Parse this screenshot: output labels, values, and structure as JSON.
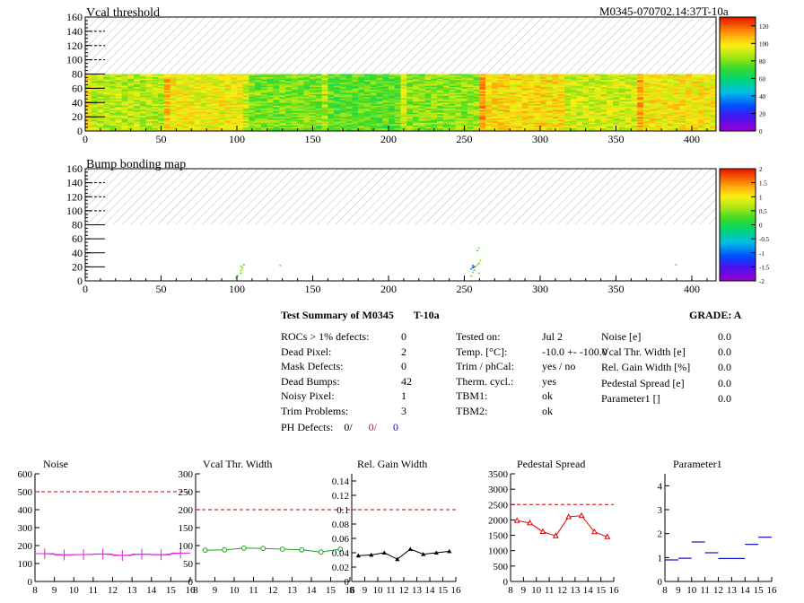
{
  "header": {
    "id_label": "M0345-070702.14:37T-10a"
  },
  "maps": [
    {
      "key": "vcal",
      "title": "Vcal threshold",
      "x_ticks": [
        0,
        50,
        100,
        150,
        200,
        250,
        300,
        350,
        400
      ],
      "y_ticks": [
        0,
        20,
        40,
        60,
        80,
        100,
        120,
        140,
        160
      ],
      "palette_ticks": [
        "0",
        "20",
        "40",
        "60",
        "80",
        "100",
        "120"
      ],
      "palette_range": [
        0,
        130
      ]
    },
    {
      "key": "bump",
      "title": "Bump bonding map",
      "x_ticks": [
        0,
        50,
        100,
        150,
        200,
        250,
        300,
        350,
        400
      ],
      "y_ticks": [
        0,
        20,
        40,
        60,
        80,
        100,
        120,
        140,
        160
      ],
      "palette_ticks": [
        "-2",
        "-1.5",
        "-1",
        "-0.5",
        "0",
        "0.5",
        "1",
        "1.5",
        "2"
      ],
      "palette_range": [
        -2,
        2
      ]
    }
  ],
  "summary": {
    "title": "Test Summary of M0345",
    "test_label": "T-10a",
    "grade": "GRADE:  A",
    "defects": [
      {
        "label": "ROCs > 1% defects:",
        "value": "0"
      },
      {
        "label": "Dead Pixel:",
        "value": "2"
      },
      {
        "label": "Mask Defects:",
        "value": "0"
      },
      {
        "label": "Dead Bumps:",
        "value": "42"
      },
      {
        "label": "Noisy Pixel:",
        "value": "1"
      },
      {
        "label": "Trim Problems:",
        "value": "3"
      }
    ],
    "ph_defects": {
      "label": "PH Defects:",
      "v1": "0/",
      "v2": "0/",
      "v3": "0"
    },
    "conditions": [
      {
        "label": "Tested on:",
        "value": "Jul 2"
      },
      {
        "label": "Temp. [°C]:",
        "value": "-10.0 +- -100.0"
      },
      {
        "label": "Trim / phCal:",
        "value": "yes / no"
      },
      {
        "label": "Therm. cycl.:",
        "value": "yes"
      },
      {
        "label": "TBM1:",
        "value": "ok"
      },
      {
        "label": "TBM2:",
        "value": "ok"
      }
    ],
    "widths": [
      {
        "label": "Noise [e]",
        "value": "0.0"
      },
      {
        "label": "Vcal Thr. Width [e]",
        "value": "0.0"
      },
      {
        "label": "Rel. Gain Width [%]",
        "value": "0.0"
      },
      {
        "label": "Pedestal Spread [e]",
        "value": "0.0"
      },
      {
        "label": "Parameter1 []",
        "value": "0.0"
      }
    ]
  },
  "chart_data": [
    {
      "type": "heatmap",
      "title": "Vcal threshold",
      "x_range": [
        0,
        416
      ],
      "y_range": [
        0,
        160
      ],
      "filled_rows": [
        0,
        80
      ],
      "z_range": [
        0,
        130
      ],
      "roc_columns": [
        {
          "x": [
            0,
            52
          ],
          "mean": 88
        },
        {
          "x": [
            52,
            104
          ],
          "mean": 97
        },
        {
          "x": [
            104,
            156
          ],
          "mean": 80
        },
        {
          "x": [
            156,
            208
          ],
          "mean": 76
        },
        {
          "x": [
            208,
            260
          ],
          "mean": 82
        },
        {
          "x": [
            260,
            312
          ],
          "mean": 101
        },
        {
          "x": [
            312,
            364
          ],
          "mean": 91
        },
        {
          "x": [
            364,
            416
          ],
          "mean": 99
        }
      ]
    },
    {
      "type": "heatmap",
      "title": "Bump bonding map",
      "x_range": [
        0,
        416
      ],
      "y_range": [
        0,
        160
      ],
      "z_range": [
        -2,
        2
      ],
      "points": [
        [
          99,
          5,
          0.3
        ],
        [
          100,
          8,
          0.5
        ],
        [
          102,
          12,
          0.2
        ],
        [
          102,
          16,
          0.6
        ],
        [
          103,
          17,
          0.8
        ],
        [
          103,
          20,
          0.4
        ],
        [
          102,
          22,
          0.5
        ],
        [
          104,
          24,
          0.3
        ],
        [
          128,
          23,
          0.4
        ],
        [
          254,
          8,
          0.3
        ],
        [
          255,
          13,
          0.4
        ],
        [
          256,
          16,
          0.2
        ],
        [
          254,
          18,
          -0.8
        ],
        [
          255,
          20,
          -1.2
        ],
        [
          256,
          21,
          -1.5
        ],
        [
          255,
          23,
          -0.9
        ],
        [
          257,
          22,
          0.5
        ],
        [
          258,
          24,
          0.8
        ],
        [
          259,
          26,
          0.3
        ],
        [
          259,
          12,
          0.4
        ],
        [
          260,
          30,
          0.6
        ],
        [
          258,
          44,
          0.2
        ],
        [
          259,
          48,
          0.4
        ],
        [
          389,
          24,
          0.4
        ]
      ]
    },
    {
      "type": "line",
      "title": "Noise",
      "x": [
        8.5,
        9.5,
        10.5,
        11.5,
        12.5,
        13.5,
        14.5,
        15.5
      ],
      "y": [
        155,
        148,
        150,
        153,
        145,
        152,
        149,
        158
      ],
      "xlim": [
        8,
        16
      ],
      "ylim": [
        0,
        600
      ],
      "y_ticks": [
        "0",
        "100",
        "200",
        "300",
        "400",
        "500",
        "600"
      ],
      "x_ticks": [
        "8",
        "9",
        "10",
        "11",
        "12",
        "13",
        "14",
        "15",
        "16"
      ],
      "limit": 500,
      "color": "#e020e0"
    },
    {
      "type": "line",
      "title": "Vcal Thr. Width",
      "x": [
        8.5,
        9.5,
        10.5,
        11.5,
        12.5,
        13.5,
        14.5,
        15.5
      ],
      "y": [
        87,
        88,
        93,
        92,
        90,
        88,
        82,
        90
      ],
      "xlim": [
        8,
        16
      ],
      "ylim": [
        0,
        300
      ],
      "y_ticks": [
        "0",
        "50",
        "100",
        "150",
        "200",
        "250",
        "300"
      ],
      "x_ticks": [
        "8",
        "9",
        "10",
        "11",
        "12",
        "13",
        "14",
        "15",
        "16"
      ],
      "limit": 200,
      "color": "#20a020"
    },
    {
      "type": "line",
      "title": "Rel. Gain Width",
      "x": [
        8.5,
        9.5,
        10.5,
        11.5,
        12.5,
        13.5,
        14.5,
        15.5
      ],
      "y": [
        0.036,
        0.037,
        0.04,
        0.031,
        0.045,
        0.038,
        0.04,
        0.042
      ],
      "xlim": [
        8,
        16
      ],
      "ylim": [
        0,
        0.15
      ],
      "y_ticks": [
        "0",
        "0.02",
        "0.04",
        "0.06",
        "0.08",
        "0.1",
        "0.12",
        "0.14"
      ],
      "y_tick_values": [
        0,
        0.02,
        0.04,
        0.06,
        0.08,
        0.1,
        0.12,
        0.14
      ],
      "x_ticks": [
        "8",
        "9",
        "10",
        "11",
        "12",
        "13",
        "14",
        "15",
        "16"
      ],
      "limit": 0.1,
      "color": "#000000"
    },
    {
      "type": "line",
      "title": "Pedestal Spread",
      "x": [
        8.5,
        9.5,
        10.5,
        11.5,
        12.5,
        13.5,
        14.5,
        15.5
      ],
      "y": [
        1980,
        1900,
        1620,
        1480,
        2100,
        2140,
        1610,
        1450
      ],
      "xlim": [
        8,
        16
      ],
      "ylim": [
        0,
        3500
      ],
      "y_ticks": [
        "0",
        "500",
        "1000",
        "1500",
        "2000",
        "2500",
        "3000",
        "3500"
      ],
      "x_ticks": [
        "8",
        "9",
        "10",
        "11",
        "12",
        "13",
        "14",
        "15",
        "16"
      ],
      "limit": 2500,
      "color": "#e00000"
    },
    {
      "type": "scatter",
      "title": "Parameter1",
      "x": [
        8.5,
        9.5,
        10.5,
        11.5,
        12.5,
        13.5,
        14.5,
        15.5
      ],
      "y": [
        0.9,
        0.97,
        1.65,
        1.2,
        0.96,
        0.96,
        1.55,
        1.85
      ],
      "xlim": [
        8,
        16
      ],
      "ylim": [
        0,
        4.5
      ],
      "y_ticks": [
        "0",
        "1",
        "2",
        "3",
        "4"
      ],
      "x_ticks": [
        "8",
        "9",
        "10",
        "11",
        "12",
        "13",
        "14",
        "15",
        "16"
      ],
      "color": "#1010c0"
    }
  ]
}
